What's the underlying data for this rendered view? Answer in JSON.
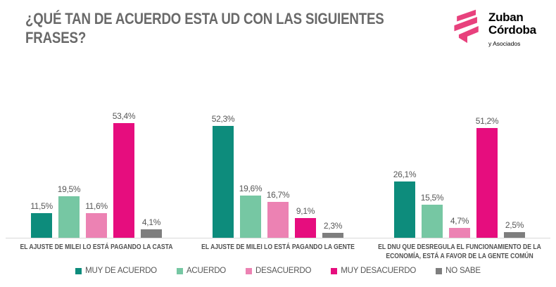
{
  "header": {
    "title_line1": "¿QUÉ TAN DE ACUERDO ESTA UD CON LAS SIGUIENTES",
    "title_line2": "FRASES?"
  },
  "logo": {
    "name_line1": "Zuban",
    "name_line2": "Córdoba",
    "tagline": "y Asociados",
    "brand_color": "#e8417d"
  },
  "chart_data": {
    "type": "bar",
    "unit": "%",
    "title": "¿QUÉ TAN DE ACUERDO ESTA UD CON LAS SIGUIENTES FRASES?",
    "categories": [
      "EL AJUSTE DE MILEI LO ESTÁ PAGANDO LA CASTA",
      "EL AJUSTE DE MILEI LO ESTÁ PAGANDO LA GENTE",
      "EL DNU QUE DESREGULA EL FUNCIONAMIENTO DE LA\nECONOMÍA, ESTÁ A FAVOR DE LA GENTE COMÚN"
    ],
    "series": [
      {
        "name": "MUY DE ACUERDO",
        "color": "#0d8c7c",
        "values": [
          11.5,
          52.3,
          26.1
        ]
      },
      {
        "name": "ACUERDO",
        "color": "#76c7a3",
        "values": [
          19.5,
          19.6,
          15.5
        ]
      },
      {
        "name": "DESACUERDO",
        "color": "#ec82b3",
        "values": [
          11.6,
          16.7,
          4.7
        ]
      },
      {
        "name": "MUY DESACUERDO",
        "color": "#e60d7e",
        "values": [
          53.4,
          9.1,
          51.2
        ]
      },
      {
        "name": "NO SABE",
        "color": "#7e7e7e",
        "values": [
          4.1,
          2.3,
          2.5
        ]
      }
    ],
    "value_labels": [
      [
        "11,5%",
        "19,5%",
        "11,6%",
        "53,4%",
        "4,1%"
      ],
      [
        "52,3%",
        "19,6%",
        "16,7%",
        "9,1%",
        "2,3%"
      ],
      [
        "26,1%",
        "15,5%",
        "4,7%",
        "51,2%",
        "2,5%"
      ]
    ],
    "ylim": [
      0,
      60
    ],
    "grid": false,
    "legend_position": "bottom"
  }
}
